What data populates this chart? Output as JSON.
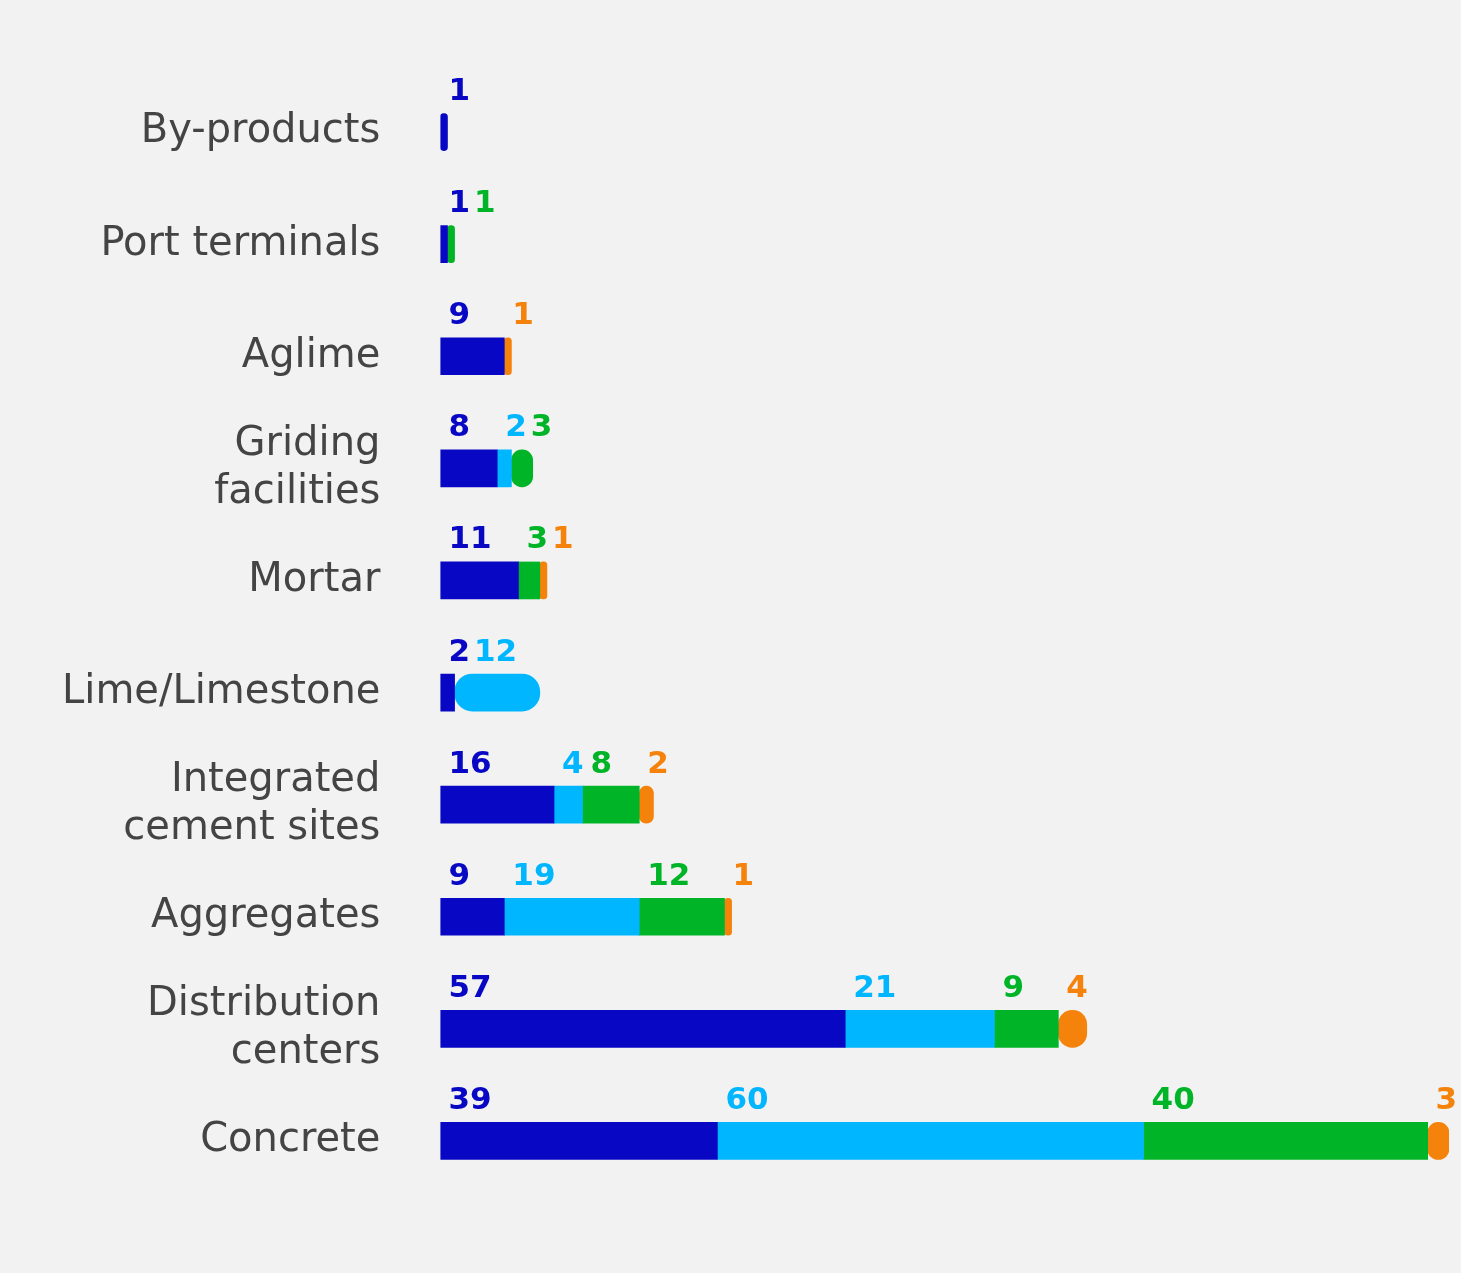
{
  "chart_data": {
    "type": "bar",
    "orientation": "horizontal",
    "stacked": true,
    "data_labels": true,
    "legend": false,
    "grid": false,
    "tick_labels": "y",
    "xlim": [
      0,
      142
    ],
    "categories": [
      "By-products",
      "Port terminals",
      "Aglime",
      "Griding\nfacilities",
      "Mortar",
      "Lime/Limestone",
      "Integrated\ncement sites",
      "Aggregates",
      "Distribution\ncenters",
      "Concrete"
    ],
    "series": [
      {
        "color": "#0808c4",
        "values": [
          1,
          1,
          9,
          8,
          11,
          2,
          16,
          9,
          57,
          39
        ]
      },
      {
        "color": "#00b6ff",
        "values": [
          null,
          null,
          null,
          2,
          null,
          12,
          4,
          19,
          21,
          60
        ]
      },
      {
        "color": "#00b428",
        "values": [
          null,
          1,
          null,
          3,
          3,
          null,
          8,
          12,
          9,
          40
        ]
      },
      {
        "color": "#f5820a",
        "values": [
          null,
          null,
          1,
          null,
          1,
          null,
          2,
          1,
          4,
          3
        ]
      }
    ]
  }
}
